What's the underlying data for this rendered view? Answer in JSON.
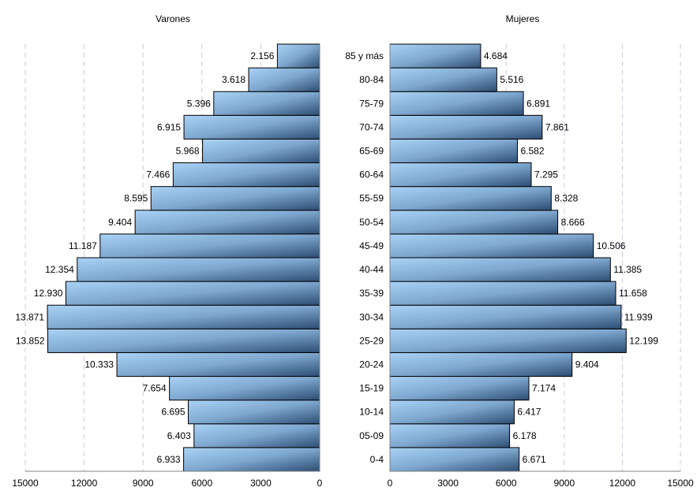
{
  "chart_data": {
    "type": "bar",
    "orientation": "horizontal",
    "layout": "population-pyramid",
    "categories": [
      "0-4",
      "05-09",
      "10-14",
      "15-19",
      "20-24",
      "25-29",
      "30-34",
      "35-39",
      "40-44",
      "45-49",
      "50-54",
      "55-59",
      "60-64",
      "65-69",
      "70-74",
      "75-79",
      "80-84",
      "85 y más"
    ],
    "series": [
      {
        "name": "Varones",
        "values": [
          6933,
          6403,
          6695,
          7654,
          10333,
          13852,
          13871,
          12930,
          12354,
          11187,
          9404,
          8595,
          7466,
          5968,
          6915,
          5396,
          3618,
          2156
        ],
        "labels": [
          "6.933",
          "6.403",
          "6.695",
          "7.654",
          "10.333",
          "13.852",
          "13.871",
          "12.930",
          "12.354",
          "11.187",
          "9.404",
          "8.595",
          "7.466",
          "5.968",
          "6.915",
          "5.396",
          "3.618",
          "2.156"
        ]
      },
      {
        "name": "Mujeres",
        "values": [
          6671,
          6178,
          6417,
          7174,
          9404,
          12199,
          11939,
          11658,
          11385,
          10506,
          8666,
          8328,
          7295,
          6582,
          7861,
          6891,
          5516,
          4684
        ],
        "labels": [
          "6.671",
          "6.178",
          "6.417",
          "7.174",
          "9.404",
          "12.199",
          "11.939",
          "11.658",
          "11.385",
          "10.506",
          "8.666",
          "8.328",
          "7.295",
          "6.582",
          "7.861",
          "6.891",
          "5.516",
          "4.684"
        ]
      }
    ],
    "xlim": [
      0,
      15000
    ],
    "ticks": [
      "15000",
      "12000",
      "9000",
      "6000",
      "3000",
      "0"
    ],
    "ticks_right": [
      "0",
      "3000",
      "6000",
      "9000",
      "12000",
      "15000"
    ],
    "grid": "vertical-dashed",
    "colors": {
      "bar_light": "#a9d2f5",
      "bar_dark": "#2d4d73",
      "grid": "#c8c8e0",
      "axis": "#808080"
    }
  }
}
